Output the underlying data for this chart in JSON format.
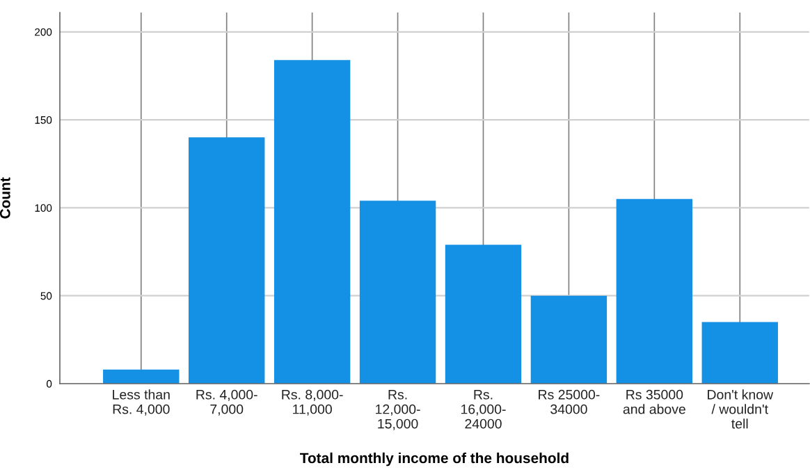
{
  "chart_data": {
    "type": "bar",
    "xlabel": "Total monthly income of the household",
    "ylabel": "Count",
    "categories": [
      "Less than\nRs. 4,000",
      "Rs. 4,000-\n7,000",
      "Rs. 8,000-\n11,000",
      "Rs.\n12,000-\n15,000",
      "Rs.\n16,000-\n24000",
      "Rs 25000-\n34000",
      "Rs 35000\nand above",
      "Don't know\n/ wouldn't\ntell"
    ],
    "values": [
      8,
      140,
      184,
      104,
      79,
      50,
      105,
      35
    ],
    "color": "#1490e5",
    "ylim": [
      0,
      211
    ],
    "yticks": [
      0,
      50,
      100,
      150,
      200
    ],
    "grid": true
  }
}
